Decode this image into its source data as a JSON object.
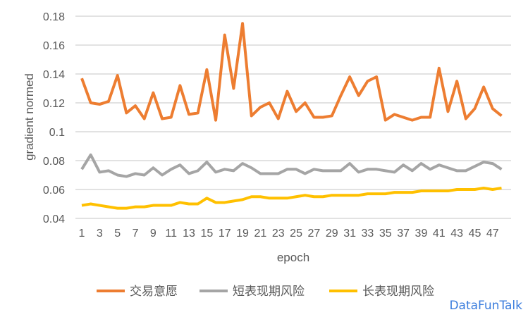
{
  "chart_data": {
    "type": "line",
    "title": "",
    "xlabel": "epoch",
    "ylabel": "gradient normed",
    "ylim": [
      0.04,
      0.18
    ],
    "yticks": [
      "0.04",
      "0.06",
      "0.08",
      "0.1",
      "0.12",
      "0.14",
      "0.16",
      "0.18"
    ],
    "xticks": [
      "1",
      "3",
      "5",
      "7",
      "9",
      "11",
      "13",
      "15",
      "17",
      "19",
      "21",
      "23",
      "25",
      "27",
      "29",
      "31",
      "33",
      "35",
      "37",
      "39",
      "41",
      "43",
      "45",
      "47"
    ],
    "grid": true,
    "legend": "bottom",
    "x": [
      1,
      2,
      3,
      4,
      5,
      6,
      7,
      8,
      9,
      10,
      11,
      12,
      13,
      14,
      15,
      16,
      17,
      18,
      19,
      20,
      21,
      22,
      23,
      24,
      25,
      26,
      27,
      28,
      29,
      30,
      31,
      32,
      33,
      34,
      35,
      36,
      37,
      38,
      39,
      40,
      41,
      42,
      43,
      44,
      45,
      46,
      47,
      48
    ],
    "series": [
      {
        "name": "交易意愿",
        "color": "#ed7d31",
        "values": [
          0.137,
          0.12,
          0.119,
          0.121,
          0.139,
          0.113,
          0.118,
          0.109,
          0.127,
          0.109,
          0.11,
          0.132,
          0.112,
          0.113,
          0.143,
          0.108,
          0.167,
          0.13,
          0.175,
          0.111,
          0.117,
          0.12,
          0.109,
          0.128,
          0.114,
          0.12,
          0.11,
          0.11,
          0.111,
          0.125,
          0.138,
          0.125,
          0.135,
          0.138,
          0.108,
          0.112,
          0.11,
          0.108,
          0.11,
          0.11,
          0.144,
          0.114,
          0.135,
          0.109,
          0.116,
          0.131,
          0.116,
          0.111
        ]
      },
      {
        "name": "短表现期风险",
        "color": "#a5a5a5",
        "values": [
          0.074,
          0.084,
          0.072,
          0.073,
          0.07,
          0.069,
          0.071,
          0.07,
          0.075,
          0.07,
          0.074,
          0.077,
          0.071,
          0.073,
          0.079,
          0.072,
          0.074,
          0.073,
          0.078,
          0.075,
          0.071,
          0.071,
          0.071,
          0.074,
          0.074,
          0.071,
          0.074,
          0.073,
          0.073,
          0.073,
          0.078,
          0.072,
          0.074,
          0.074,
          0.073,
          0.072,
          0.077,
          0.073,
          0.078,
          0.074,
          0.077,
          0.075,
          0.073,
          0.073,
          0.076,
          0.079,
          0.078,
          0.074
        ]
      },
      {
        "name": "长表现期风险",
        "color": "#ffc000",
        "values": [
          0.049,
          0.05,
          0.049,
          0.048,
          0.047,
          0.047,
          0.048,
          0.048,
          0.049,
          0.049,
          0.049,
          0.051,
          0.05,
          0.05,
          0.054,
          0.051,
          0.051,
          0.052,
          0.053,
          0.055,
          0.055,
          0.054,
          0.054,
          0.054,
          0.055,
          0.056,
          0.055,
          0.055,
          0.056,
          0.056,
          0.056,
          0.056,
          0.057,
          0.057,
          0.057,
          0.058,
          0.058,
          0.058,
          0.059,
          0.059,
          0.059,
          0.059,
          0.06,
          0.06,
          0.06,
          0.061,
          0.06,
          0.061
        ]
      }
    ]
  },
  "watermark": "DataFunTalk"
}
